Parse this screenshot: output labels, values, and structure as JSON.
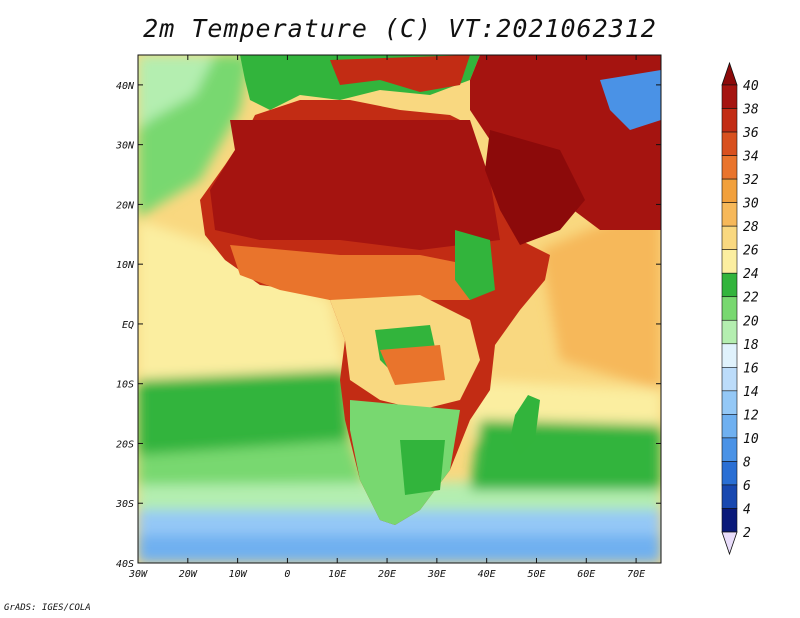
{
  "title": "2m Temperature (C) VT:2021062312",
  "footer": "GrADS: IGES/COLA",
  "map": {
    "lon_range": [
      -30,
      75
    ],
    "lat_range": [
      -40,
      45
    ],
    "lat_ticks": [
      {
        "v": 40,
        "label": "40N"
      },
      {
        "v": 30,
        "label": "30N"
      },
      {
        "v": 20,
        "label": "20N"
      },
      {
        "v": 10,
        "label": "10N"
      },
      {
        "v": 0,
        "label": "EQ"
      },
      {
        "v": -10,
        "label": "10S"
      },
      {
        "v": -20,
        "label": "20S"
      },
      {
        "v": -30,
        "label": "30S"
      },
      {
        "v": -40,
        "label": "40S"
      }
    ],
    "lon_ticks": [
      {
        "v": -30,
        "label": "30W"
      },
      {
        "v": -20,
        "label": "20W"
      },
      {
        "v": -10,
        "label": "10W"
      },
      {
        "v": 0,
        "label": "0"
      },
      {
        "v": 10,
        "label": "10E"
      },
      {
        "v": 20,
        "label": "20E"
      },
      {
        "v": 30,
        "label": "30E"
      },
      {
        "v": 40,
        "label": "40E"
      },
      {
        "v": 50,
        "label": "50E"
      },
      {
        "v": 60,
        "label": "60E"
      },
      {
        "v": 70,
        "label": "70E"
      }
    ]
  },
  "colorbar": {
    "levels": [
      "2",
      "4",
      "6",
      "8",
      "10",
      "12",
      "14",
      "16",
      "18",
      "20",
      "22",
      "24",
      "26",
      "28",
      "30",
      "32",
      "34",
      "36",
      "38",
      "40"
    ],
    "colors": [
      "#0a1a7a",
      "#1848b0",
      "#2a6fd4",
      "#4a92e6",
      "#6fb0f0",
      "#94c8f6",
      "#bcdcfa",
      "#e0f2fc",
      "#b4eeb0",
      "#78d870",
      "#32b43c",
      "#fbeea0",
      "#f9d880",
      "#f6b85a",
      "#f1a03c",
      "#e9742c",
      "#d8501e",
      "#c22c14",
      "#a51410"
    ],
    "low_color": "#e8dcfa",
    "high_color": "#8c0a0a"
  }
}
